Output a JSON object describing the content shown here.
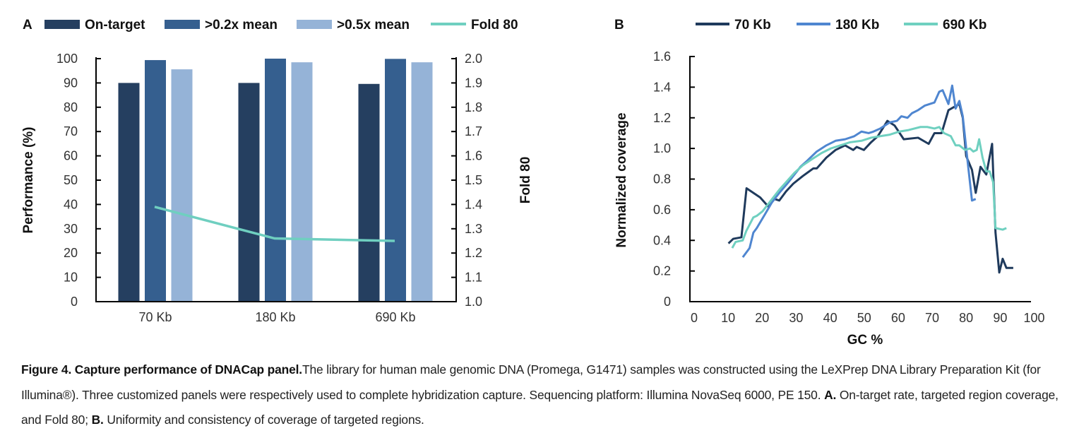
{
  "chart_data": [
    {
      "panel": "A",
      "type": "bar",
      "categories": [
        "70 Kb",
        "180 Kb",
        "690 Kb"
      ],
      "series": [
        {
          "name": "On-target",
          "type": "bar",
          "axis": "left",
          "color": "#253f60",
          "values": [
            90.0,
            90.0,
            89.6
          ]
        },
        {
          "name": ">0.2x mean",
          "type": "bar",
          "axis": "left",
          "color": "#355f8f",
          "values": [
            99.4,
            100.0,
            99.9
          ]
        },
        {
          "name": ">0.5x mean",
          "type": "bar",
          "axis": "left",
          "color": "#95b3d7",
          "values": [
            95.6,
            98.5,
            98.5
          ]
        },
        {
          "name": "Fold 80",
          "type": "line",
          "axis": "right",
          "color": "#6fcfc0",
          "values": [
            1.39,
            1.26,
            1.25
          ]
        }
      ],
      "ylabel": "Performance (%)",
      "y2label": "Fold 80",
      "ylim": [
        0,
        100
      ],
      "y2lim": [
        1.0,
        2.0
      ],
      "yticks": [
        "0",
        "10",
        "20",
        "30",
        "40",
        "50",
        "60",
        "70",
        "80",
        "90",
        "100"
      ],
      "y2ticks": [
        "1.0",
        "1.1",
        "1.2",
        "1.3",
        "1.4",
        "1.5",
        "1.6",
        "1.7",
        "1.8",
        "1.9",
        "2.0"
      ],
      "legend": "top",
      "grid": false
    },
    {
      "panel": "B",
      "type": "line",
      "xlabel": "GC %",
      "ylabel": "Normalized coverage",
      "xlim": [
        0,
        100
      ],
      "ylim": [
        0,
        1.6
      ],
      "xticks": [
        "0",
        "10",
        "20",
        "30",
        "40",
        "50",
        "60",
        "70",
        "80",
        "90",
        "100"
      ],
      "yticks": [
        "0",
        "0.2",
        "0.4",
        "0.6",
        "0.8",
        "1.0",
        "1.2",
        "1.4",
        "1.6"
      ],
      "legend": "top",
      "grid": false,
      "series": [
        {
          "name": "70 Kb",
          "color": "#1f3a5c",
          "points": [
            [
              11.3,
              0.38
            ],
            [
              12.7,
              0.41
            ],
            [
              15.1,
              0.42
            ],
            [
              16.6,
              0.74
            ],
            [
              20.6,
              0.68
            ],
            [
              23.0,
              0.62
            ],
            [
              24.8,
              0.67
            ],
            [
              26.2,
              0.66
            ],
            [
              28.2,
              0.72
            ],
            [
              30.3,
              0.77
            ],
            [
              33.1,
              0.82
            ],
            [
              36.2,
              0.87
            ],
            [
              37.2,
              0.87
            ],
            [
              40.0,
              0.94
            ],
            [
              42.7,
              0.99
            ],
            [
              45.5,
              1.02
            ],
            [
              47.9,
              0.99
            ],
            [
              48.9,
              1.01
            ],
            [
              51.0,
              0.99
            ],
            [
              53.1,
              1.04
            ],
            [
              55.1,
              1.08
            ],
            [
              57.9,
              1.18
            ],
            [
              60.0,
              1.15
            ],
            [
              62.7,
              1.06
            ],
            [
              66.9,
              1.07
            ],
            [
              70.0,
              1.03
            ],
            [
              71.7,
              1.1
            ],
            [
              73.8,
              1.1
            ],
            [
              75.8,
              1.25
            ],
            [
              79.0,
              1.29
            ],
            [
              80.0,
              1.2
            ],
            [
              81.0,
              0.95
            ],
            [
              82.7,
              0.86
            ],
            [
              83.8,
              0.71
            ],
            [
              85.2,
              0.88
            ],
            [
              86.9,
              0.83
            ],
            [
              88.6,
              1.03
            ],
            [
              89.6,
              0.45
            ],
            [
              90.7,
              0.19
            ],
            [
              91.7,
              0.28
            ],
            [
              92.8,
              0.22
            ],
            [
              94.8,
              0.22
            ]
          ]
        },
        {
          "name": "180 Kb",
          "color": "#4f86d0",
          "points": [
            [
              15.5,
              0.29
            ],
            [
              17.5,
              0.35
            ],
            [
              18.6,
              0.45
            ],
            [
              19.6,
              0.48
            ],
            [
              22.0,
              0.57
            ],
            [
              24.1,
              0.65
            ],
            [
              26.2,
              0.71
            ],
            [
              28.9,
              0.78
            ],
            [
              32.4,
              0.88
            ],
            [
              34.4,
              0.92
            ],
            [
              37.2,
              0.98
            ],
            [
              40.0,
              1.02
            ],
            [
              42.7,
              1.05
            ],
            [
              45.5,
              1.06
            ],
            [
              48.2,
              1.08
            ],
            [
              50.3,
              1.11
            ],
            [
              52.4,
              1.1
            ],
            [
              53.8,
              1.11
            ],
            [
              55.8,
              1.13
            ],
            [
              58.6,
              1.17
            ],
            [
              60.7,
              1.18
            ],
            [
              62.0,
              1.21
            ],
            [
              63.8,
              1.2
            ],
            [
              65.1,
              1.23
            ],
            [
              66.9,
              1.25
            ],
            [
              68.9,
              1.28
            ],
            [
              71.7,
              1.3
            ],
            [
              73.1,
              1.37
            ],
            [
              74.1,
              1.38
            ],
            [
              75.8,
              1.29
            ],
            [
              76.9,
              1.41
            ],
            [
              77.9,
              1.26
            ],
            [
              79.0,
              1.31
            ],
            [
              80.0,
              1.21
            ],
            [
              81.4,
              0.92
            ],
            [
              82.7,
              0.66
            ],
            [
              83.8,
              0.67
            ]
          ]
        },
        {
          "name": "690 Kb",
          "color": "#6fd0c0",
          "points": [
            [
              12.4,
              0.35
            ],
            [
              13.4,
              0.39
            ],
            [
              15.5,
              0.4
            ],
            [
              16.5,
              0.46
            ],
            [
              18.6,
              0.55
            ],
            [
              19.6,
              0.56
            ],
            [
              21.3,
              0.59
            ],
            [
              23.4,
              0.65
            ],
            [
              26.2,
              0.73
            ],
            [
              28.2,
              0.78
            ],
            [
              30.6,
              0.84
            ],
            [
              33.1,
              0.89
            ],
            [
              35.8,
              0.93
            ],
            [
              38.6,
              0.97
            ],
            [
              41.3,
              1.0
            ],
            [
              44.1,
              1.02
            ],
            [
              46.9,
              1.04
            ],
            [
              50.3,
              1.05
            ],
            [
              53.1,
              1.07
            ],
            [
              55.8,
              1.08
            ],
            [
              58.6,
              1.09
            ],
            [
              61.4,
              1.11
            ],
            [
              64.1,
              1.12
            ],
            [
              67.6,
              1.14
            ],
            [
              69.6,
              1.14
            ],
            [
              71.7,
              1.13
            ],
            [
              73.1,
              1.14
            ],
            [
              74.5,
              1.1
            ],
            [
              76.5,
              1.08
            ],
            [
              77.9,
              1.02
            ],
            [
              79.0,
              1.02
            ],
            [
              80.7,
              0.99
            ],
            [
              82.1,
              1.0
            ],
            [
              83.1,
              0.98
            ],
            [
              84.1,
              0.99
            ],
            [
              84.8,
              1.06
            ],
            [
              85.8,
              0.94
            ],
            [
              86.9,
              0.85
            ],
            [
              87.9,
              0.85
            ],
            [
              88.9,
              0.78
            ],
            [
              89.6,
              0.48
            ],
            [
              91.7,
              0.47
            ],
            [
              92.8,
              0.48
            ]
          ]
        }
      ]
    }
  ],
  "panels": {
    "a_label": "A",
    "b_label": "B"
  },
  "caption": {
    "title": "Figure 4. Capture performance of DNACap panel.",
    "text1": "The library for human male genomic DNA (Promega, G1471) samples was constructed using the LeXPrep DNA Library Preparation Kit (for Illumina®). Three customized panels were respectively used to complete hybridization capture. Sequencing platform: Illumina NovaSeq 6000, PE 150. ",
    "a_bold": "A.",
    "a_text": " On-target rate, targeted region coverage, and Fold 80; ",
    "b_bold": "B.",
    "b_text": " Uniformity and consistency of coverage of targeted regions."
  }
}
